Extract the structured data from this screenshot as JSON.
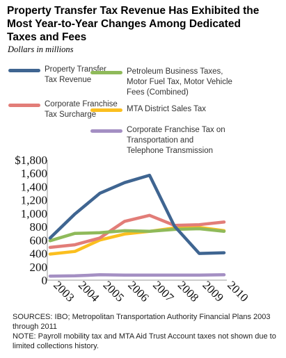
{
  "header": {
    "title_lines": [
      "Property Transfer Tax Revenue Has Exhibited the",
      "Most Year-to-Year Changes Among Dedicated",
      "Taxes and Fees"
    ],
    "subtitle": "Dollars in millions"
  },
  "legend": [
    {
      "lines": [
        "Property Transfer",
        "Tax Revenue"
      ],
      "color": "#3f6591"
    },
    {
      "lines": [
        "Petroleum Business Taxes,",
        "Motor Fuel Tax, Motor Vehicle",
        "Fees (Combined)"
      ],
      "color": "#8fba5a"
    },
    {
      "lines": [
        "Corporate Franchise",
        "Tax Surcharge"
      ],
      "color": "#e27d78"
    },
    {
      "lines": [
        "MTA District Sales Tax"
      ],
      "color": "#fbbf1f"
    },
    {
      "lines": [
        "Corporate Franchise Tax on",
        "Transportation and",
        "Telephone Transmission"
      ],
      "color": "#a48fc3"
    }
  ],
  "chart_data": {
    "type": "line",
    "x": [
      "2003",
      "2004",
      "2005",
      "2006",
      "2007",
      "2008",
      "2009",
      "2010"
    ],
    "ylim": [
      0,
      1800
    ],
    "yticks": [
      "$1,800",
      "1,600",
      "1,400",
      "1,200",
      "1,000",
      "800",
      "600",
      "400",
      "200",
      "0"
    ],
    "grid": false,
    "series": [
      {
        "name": "Property Transfer Tax Revenue",
        "color": "#3f6591",
        "values": [
          630,
          990,
          1300,
          1460,
          1570,
          810,
          400,
          410
        ]
      },
      {
        "name": "Petroleum Business Taxes, Motor Fuel Tax, Motor Vehicle Fees (Combined)",
        "color": "#8fba5a",
        "values": [
          590,
          700,
          710,
          740,
          730,
          760,
          770,
          730
        ]
      },
      {
        "name": "Corporate Franchise Tax Surcharge",
        "color": "#e27d78",
        "values": [
          490,
          530,
          630,
          880,
          970,
          820,
          830,
          870
        ]
      },
      {
        "name": "MTA District Sales Tax",
        "color": "#fbbf1f",
        "values": [
          390,
          430,
          600,
          690,
          730,
          780,
          790,
          740
        ]
      },
      {
        "name": "Corporate Franchise Tax on Transportation and Telephone Transmission",
        "color": "#a48fc3",
        "values": [
          60,
          65,
          80,
          75,
          75,
          75,
          75,
          80
        ]
      }
    ]
  },
  "notes": {
    "sources": "SOURCES: IBO; Metropolitan Transportation Authority Financial Plans 2003 through 2011",
    "note": "NOTE: Payroll mobility tax and MTA Aid Trust Account taxes not shown due to limited collections history."
  }
}
